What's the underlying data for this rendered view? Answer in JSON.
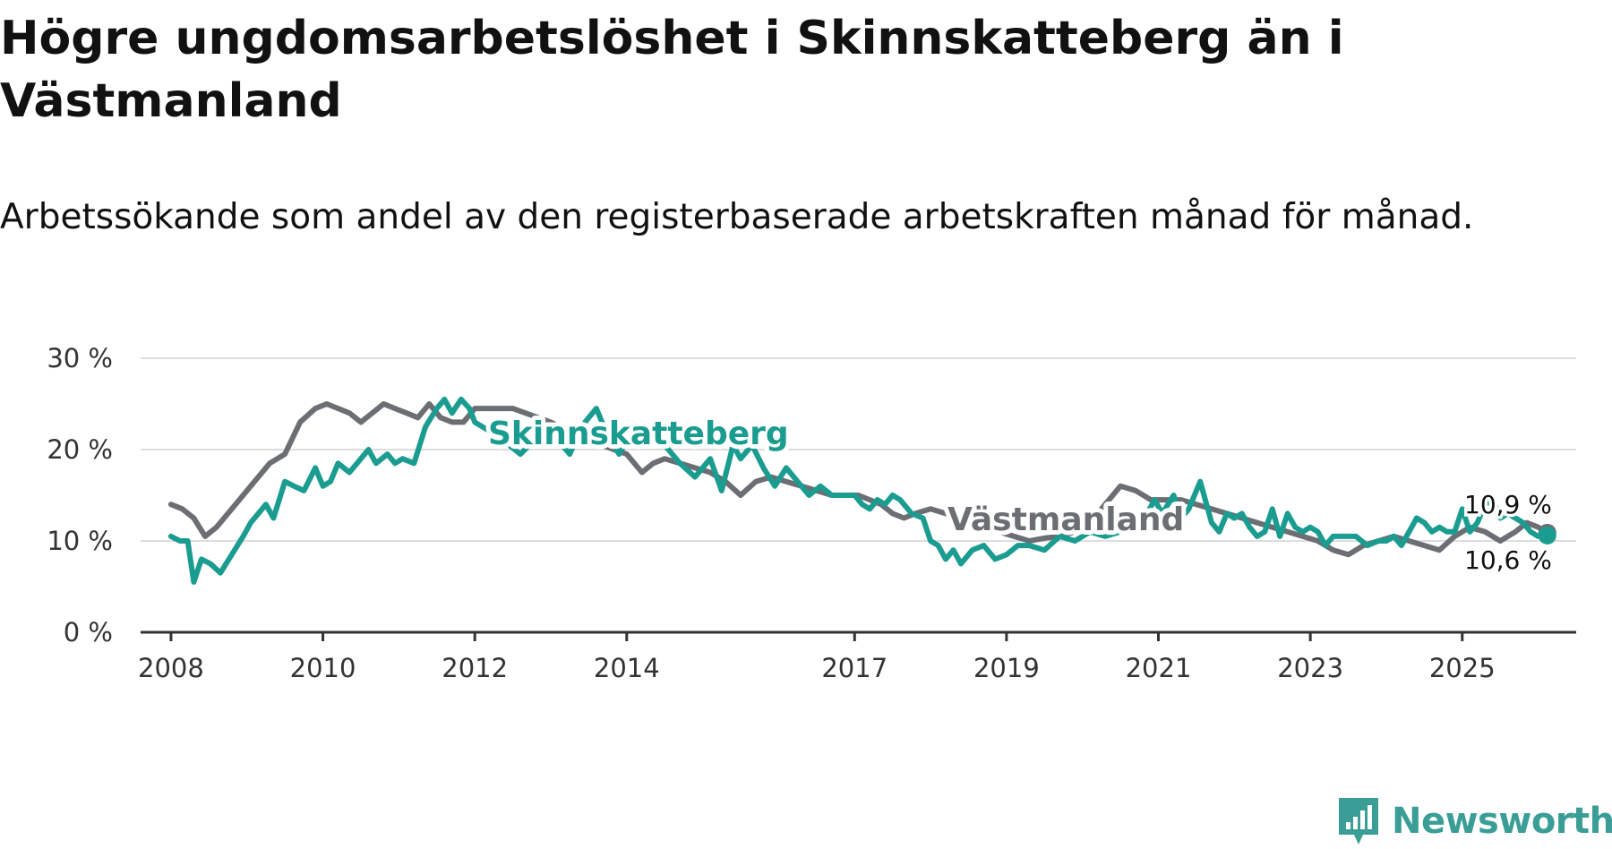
{
  "title": "Högre ungdomsarbetslöshet i Skinnskatteberg än i Västmanland",
  "subtitle": "Arbetssökande som andel av den registerbaserade arbetskraften månad för månad.",
  "logo_text": "Newsworthy",
  "chart_data": {
    "type": "line",
    "title": "Högre ungdomsarbetslöshet i Skinnskatteberg än i Västmanland",
    "subtitle": "Arbetssökande som andel av den registerbaserade arbetskraften månad för månad.",
    "xlabel": "",
    "ylabel": "",
    "ylim": [
      0,
      30
    ],
    "xlim": [
      2007.6,
      2026.5
    ],
    "yticks": [
      0,
      10,
      20,
      30
    ],
    "ytick_labels": [
      "0 %",
      "10 %",
      "20 %",
      "30 %"
    ],
    "xticks": [
      2008,
      2010,
      2012,
      2014,
      2017,
      2019,
      2021,
      2023,
      2025
    ],
    "xtick_labels": [
      "2008",
      "2010",
      "2012",
      "2014",
      "2017",
      "2019",
      "2021",
      "2023",
      "2025"
    ],
    "grid": true,
    "series": [
      {
        "name": "Västmanland",
        "color": "#6b6e73",
        "x": [
          2008.0,
          2008.15,
          2008.3,
          2008.45,
          2008.6,
          2008.75,
          2008.9,
          2009.1,
          2009.3,
          2009.5,
          2009.7,
          2009.9,
          2010.05,
          2010.2,
          2010.35,
          2010.5,
          2010.65,
          2010.8,
          2010.95,
          2011.1,
          2011.25,
          2011.4,
          2011.55,
          2011.7,
          2011.85,
          2012.0,
          2012.5,
          2013.0,
          2013.5,
          2014.0,
          2014.2,
          2014.35,
          2014.5,
          2014.7,
          2014.9,
          2015.1,
          2015.3,
          2015.5,
          2015.7,
          2015.9,
          2016.1,
          2016.3,
          2016.5,
          2016.7,
          2016.9,
          2017.05,
          2017.2,
          2017.35,
          2017.5,
          2017.65,
          2017.8,
          2018.0,
          2018.2,
          2018.35,
          2018.5,
          2018.7,
          2018.9,
          2019.1,
          2019.3,
          2019.5,
          2019.7,
          2019.9,
          2020.1,
          2020.3,
          2020.5,
          2020.7,
          2020.9,
          2021.1,
          2021.3,
          2021.5,
          2021.7,
          2021.9,
          2022.1,
          2022.3,
          2022.5,
          2022.7,
          2022.9,
          2023.1,
          2023.3,
          2023.5,
          2023.7,
          2023.9,
          2024.1,
          2024.3,
          2024.5,
          2024.7,
          2024.9,
          2025.1,
          2025.3,
          2025.5,
          2025.7,
          2025.85,
          2026.0,
          2026.12
        ],
        "values": [
          14.0,
          13.5,
          12.5,
          10.5,
          11.5,
          13.0,
          14.5,
          16.5,
          18.5,
          19.5,
          23.0,
          24.5,
          25.0,
          24.5,
          24.0,
          23.0,
          24.0,
          25.0,
          24.5,
          24.0,
          23.5,
          25.0,
          23.5,
          23.0,
          23.0,
          24.5,
          24.5,
          23.0,
          21.0,
          19.5,
          17.5,
          18.5,
          19.0,
          18.5,
          18.0,
          17.5,
          16.5,
          15.0,
          16.5,
          17.0,
          16.5,
          16.0,
          15.5,
          15.0,
          15.0,
          15.0,
          14.5,
          14.0,
          13.0,
          12.5,
          13.0,
          13.5,
          13.0,
          12.5,
          12.0,
          11.5,
          11.0,
          10.5,
          10.0,
          10.3,
          10.5,
          11.0,
          12.0,
          14.0,
          16.0,
          15.5,
          14.5,
          14.5,
          14.5,
          14.0,
          13.5,
          13.0,
          12.5,
          12.0,
          11.5,
          11.0,
          10.5,
          10.0,
          9.0,
          8.5,
          9.5,
          10.0,
          10.5,
          10.0,
          9.5,
          9.0,
          10.5,
          11.5,
          11.0,
          10.0,
          11.0,
          12.0,
          11.5,
          10.9
        ]
      },
      {
        "name": "Skinnskatteberg",
        "color": "#1a9c90",
        "x": [
          2008.0,
          2008.12,
          2008.22,
          2008.3,
          2008.4,
          2008.52,
          2008.65,
          2008.8,
          2008.95,
          2009.05,
          2009.15,
          2009.25,
          2009.35,
          2009.5,
          2009.62,
          2009.75,
          2009.9,
          2010.0,
          2010.1,
          2010.2,
          2010.35,
          2010.5,
          2010.6,
          2010.7,
          2010.85,
          2010.95,
          2011.05,
          2011.2,
          2011.35,
          2011.5,
          2011.6,
          2011.7,
          2011.82,
          2011.93,
          2012.0,
          2012.3,
          2012.6,
          2012.9,
          2013.1,
          2013.25,
          2013.35,
          2013.45,
          2013.6,
          2013.75,
          2013.9,
          2014.1,
          2014.3,
          2014.5,
          2014.7,
          2014.9,
          2015.1,
          2015.25,
          2015.4,
          2015.5,
          2015.65,
          2015.8,
          2015.95,
          2016.1,
          2016.25,
          2016.4,
          2016.55,
          2016.7,
          2016.85,
          2017.0,
          2017.1,
          2017.2,
          2017.3,
          2017.4,
          2017.5,
          2017.6,
          2017.75,
          2017.9,
          2018.0,
          2018.1,
          2018.2,
          2018.3,
          2018.4,
          2018.55,
          2018.7,
          2018.85,
          2019.0,
          2019.15,
          2019.3,
          2019.5,
          2019.7,
          2019.9,
          2020.1,
          2020.3,
          2020.5,
          2020.7,
          2020.85,
          2020.95,
          2021.05,
          2021.2,
          2021.3,
          2021.4,
          2021.55,
          2021.7,
          2021.8,
          2021.9,
          2022.0,
          2022.1,
          2022.2,
          2022.3,
          2022.4,
          2022.5,
          2022.6,
          2022.7,
          2022.8,
          2022.9,
          2023.0,
          2023.1,
          2023.2,
          2023.3,
          2023.45,
          2023.6,
          2023.75,
          2023.9,
          2024.0,
          2024.1,
          2024.2,
          2024.3,
          2024.4,
          2024.5,
          2024.6,
          2024.7,
          2024.8,
          2024.9,
          2025.0,
          2025.1,
          2025.2,
          2025.3,
          2025.4,
          2025.5,
          2025.6,
          2025.7,
          2025.8,
          2025.9,
          2026.0,
          2026.12
        ],
        "values": [
          10.5,
          10.0,
          10.0,
          5.5,
          8.0,
          7.5,
          6.5,
          8.5,
          10.5,
          12.0,
          13.0,
          14.0,
          12.5,
          16.5,
          16.0,
          15.5,
          18.0,
          16.0,
          16.5,
          18.5,
          17.5,
          19.0,
          20.0,
          18.5,
          19.5,
          18.5,
          19.0,
          18.5,
          22.5,
          24.5,
          25.5,
          24.0,
          25.5,
          24.5,
          23.0,
          21.5,
          19.5,
          22.0,
          21.0,
          19.5,
          21.5,
          23.0,
          24.5,
          21.5,
          19.5,
          22.5,
          21.0,
          20.5,
          18.5,
          17.0,
          19.0,
          15.5,
          20.5,
          19.0,
          20.5,
          18.0,
          16.0,
          18.0,
          16.5,
          15.0,
          16.0,
          15.0,
          15.0,
          15.0,
          14.0,
          13.5,
          14.5,
          14.0,
          15.0,
          14.5,
          13.0,
          12.5,
          10.0,
          9.5,
          8.0,
          9.0,
          7.5,
          9.0,
          9.5,
          8.0,
          8.5,
          9.5,
          9.5,
          9.0,
          10.5,
          10.0,
          11.0,
          10.5,
          11.0,
          11.5,
          13.0,
          14.5,
          13.0,
          15.0,
          12.5,
          13.5,
          16.5,
          12.0,
          11.0,
          13.0,
          12.5,
          13.0,
          11.5,
          10.5,
          11.0,
          13.5,
          10.5,
          13.0,
          11.5,
          11.0,
          11.5,
          11.0,
          9.5,
          10.5,
          10.5,
          10.5,
          9.5,
          10.0,
          10.0,
          10.5,
          9.5,
          11.0,
          12.5,
          12.0,
          11.0,
          11.5,
          11.0,
          11.0,
          13.5,
          11.0,
          12.0,
          14.0,
          14.5,
          12.5,
          13.0,
          12.5,
          12.0,
          11.0,
          10.5,
          10.6
        ]
      }
    ],
    "series_labels": [
      "Skinnskatteberg",
      "Västmanland"
    ],
    "end_labels": [
      "10,9 %",
      "10,6 %"
    ]
  }
}
